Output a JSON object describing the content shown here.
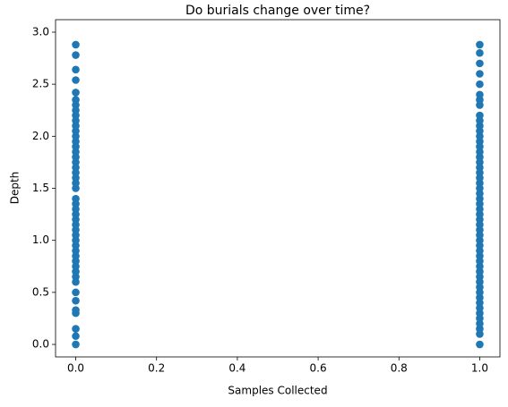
{
  "chart_data": {
    "type": "scatter",
    "title": "Do burials change over time?",
    "x_label": "Samples Collected",
    "y_label": "Depth",
    "color": "#1f77b4",
    "x": [
      0,
      0,
      0,
      0,
      0,
      0,
      0,
      0,
      0,
      0,
      0,
      0,
      0,
      0,
      0,
      0,
      0,
      0,
      0,
      0,
      0,
      0,
      0,
      0,
      0,
      0,
      0,
      0,
      0,
      0,
      0,
      0,
      0,
      0,
      0,
      0,
      0,
      0,
      0,
      0,
      0,
      0,
      0,
      0,
      0,
      0,
      0,
      1,
      1,
      1,
      1,
      1,
      1,
      1,
      1,
      1,
      1,
      1,
      1,
      1,
      1,
      1,
      1,
      1,
      1,
      1,
      1,
      1,
      1,
      1,
      1,
      1,
      1,
      1,
      1,
      1,
      1,
      1,
      1,
      1,
      1,
      1,
      1,
      1,
      1,
      1,
      1,
      1,
      1,
      1,
      1,
      1,
      1,
      1,
      1,
      1,
      1,
      1,
      1
    ],
    "y": [
      0,
      0.08,
      0.15,
      0.3,
      0.33,
      0.42,
      0.5,
      0.6,
      0.65,
      0.7,
      0.75,
      0.8,
      0.85,
      0.9,
      0.95,
      1.0,
      1.05,
      1.1,
      1.15,
      1.2,
      1.25,
      1.3,
      1.35,
      1.4,
      1.5,
      1.55,
      1.6,
      1.65,
      1.7,
      1.75,
      1.8,
      1.85,
      1.9,
      1.95,
      2.0,
      2.05,
      2.1,
      2.15,
      2.2,
      2.25,
      2.3,
      2.35,
      2.42,
      2.54,
      2.64,
      2.78,
      2.88,
      0,
      0.1,
      0.15,
      0.2,
      0.25,
      0.3,
      0.35,
      0.4,
      0.45,
      0.5,
      0.55,
      0.6,
      0.65,
      0.7,
      0.75,
      0.8,
      0.85,
      0.9,
      0.95,
      1.0,
      1.05,
      1.1,
      1.15,
      1.2,
      1.25,
      1.3,
      1.35,
      1.4,
      1.45,
      1.5,
      1.55,
      1.6,
      1.65,
      1.7,
      1.75,
      1.8,
      1.85,
      1.9,
      1.95,
      2.0,
      2.05,
      2.1,
      2.15,
      2.2,
      2.3,
      2.35,
      2.4,
      2.5,
      2.6,
      2.7,
      2.8,
      2.88
    ],
    "xlim": [
      -0.05,
      1.05
    ],
    "xticks": [
      {
        "value": 0,
        "label": "0.0"
      },
      0.2,
      0.4,
      0.6,
      0.8,
      {
        "value": 1,
        "label": "1.0"
      }
    ],
    "ylim": [
      -0.12,
      3.12
    ],
    "yticks": [
      {
        "value": 0,
        "label": "0.0"
      },
      0.5,
      {
        "value": 1,
        "label": "1.0"
      },
      1.5,
      {
        "value": 2,
        "label": "2.0"
      },
      2.5,
      {
        "value": 3,
        "label": "3.0"
      }
    ]
  }
}
